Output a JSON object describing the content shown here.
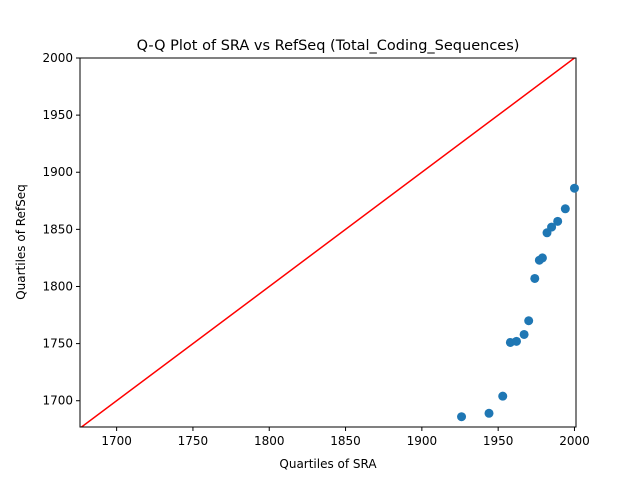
{
  "chart_data": {
    "type": "scatter",
    "title": "Q-Q Plot of SRA vs RefSeq (Total_Coding_Sequences)",
    "xlabel": "Quartiles of SRA",
    "ylabel": "Quartiles of RefSeq",
    "xlim": [
      1676,
      2001
    ],
    "ylim": [
      1677,
      2000
    ],
    "xticks": [
      1700,
      1750,
      1800,
      1850,
      1900,
      1950,
      2000
    ],
    "yticks": [
      1700,
      1750,
      1800,
      1850,
      1900,
      1950,
      2000
    ],
    "grid": false,
    "points": [
      {
        "x": 1926,
        "y": 1686
      },
      {
        "x": 1944,
        "y": 1689
      },
      {
        "x": 1953,
        "y": 1704
      },
      {
        "x": 1958,
        "y": 1751
      },
      {
        "x": 1962,
        "y": 1752
      },
      {
        "x": 1967,
        "y": 1758
      },
      {
        "x": 1970,
        "y": 1770
      },
      {
        "x": 1974,
        "y": 1807
      },
      {
        "x": 1977,
        "y": 1823
      },
      {
        "x": 1979,
        "y": 1825
      },
      {
        "x": 1982,
        "y": 1847
      },
      {
        "x": 1985,
        "y": 1852
      },
      {
        "x": 1989,
        "y": 1857
      },
      {
        "x": 1994,
        "y": 1868
      },
      {
        "x": 2000,
        "y": 1886
      }
    ],
    "reference_line": {
      "from": [
        1676,
        1676
      ],
      "to": [
        2001,
        2001
      ]
    },
    "colors": {
      "points": "#1f77b4",
      "reference_line": "#ff0000"
    }
  }
}
